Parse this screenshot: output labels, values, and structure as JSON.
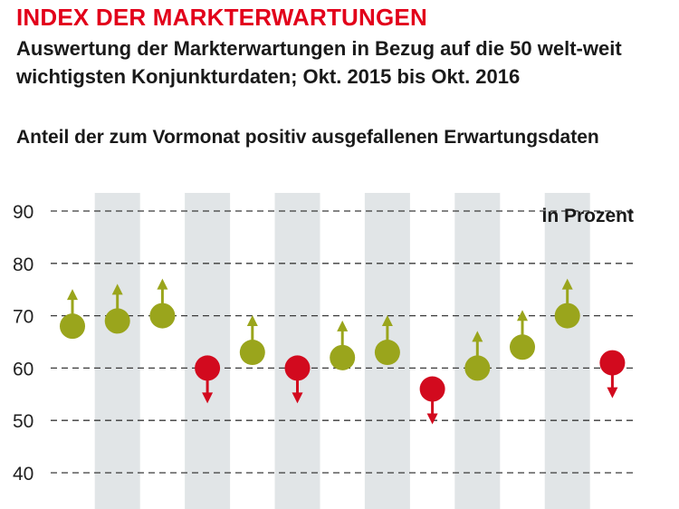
{
  "header": {
    "title": "INDEX DER MARKTERWARTUNGEN",
    "subtitle": "Auswertung der Markterwartungen in Bezug auf die 50 welt-weit wichtigsten Konjunkturdaten; Okt. 2015 bis Okt. 2016",
    "caption": "Anteil der zum Vormonat positiv ausgefallenen Erwartungsdaten"
  },
  "colors": {
    "positive": "#9aa51c",
    "negative": "#d20a1e",
    "band": "#e1e5e7",
    "accent": "#e2001a"
  },
  "chart_data": {
    "type": "scatter",
    "title": "INDEX DER MARKTERWARTUNGEN",
    "unit_label": "in Prozent",
    "ylim": [
      40,
      90
    ],
    "yticks": [
      40,
      50,
      60,
      70,
      80,
      90
    ],
    "grid": true,
    "values": [
      68,
      69,
      70,
      60,
      63,
      60,
      62,
      63,
      56,
      60,
      64,
      70,
      61
    ],
    "direction": [
      "up",
      "up",
      "up",
      "down",
      "up",
      "down",
      "up",
      "up",
      "down",
      "up",
      "up",
      "up",
      "down"
    ]
  }
}
